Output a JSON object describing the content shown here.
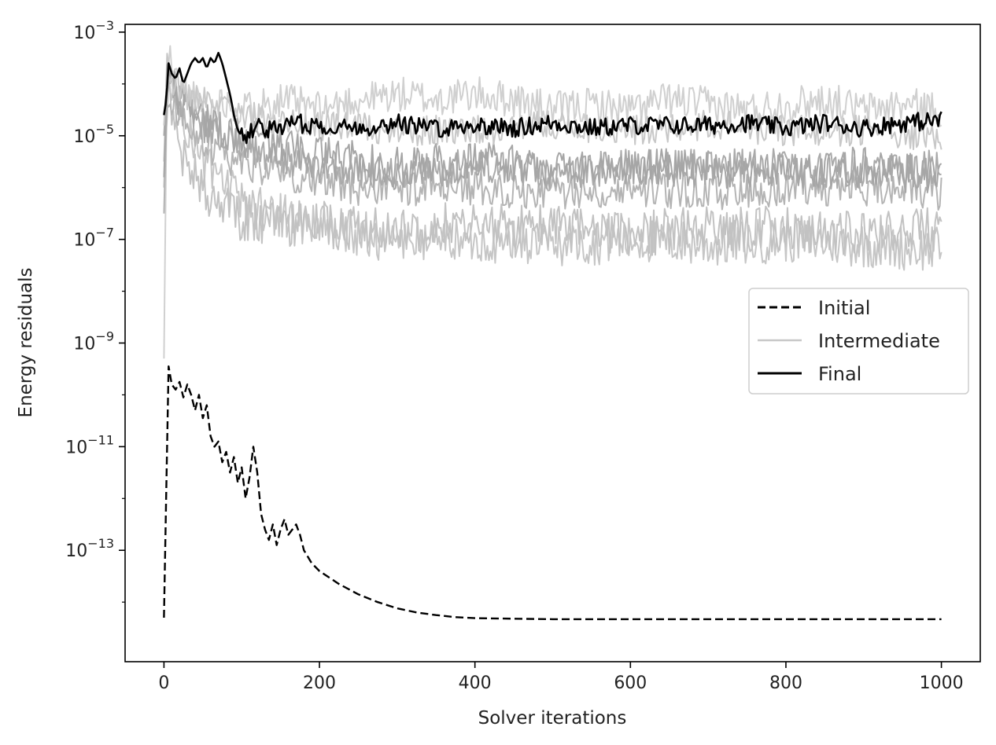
{
  "chart_data": {
    "type": "line",
    "title": "",
    "xlabel": "Solver iterations",
    "ylabel": "Energy residuals",
    "xlim": [
      -50,
      1050
    ],
    "ylim_log10": [
      -15.15,
      -2.85
    ],
    "y_scale": "log",
    "x_ticks": [
      0,
      200,
      400,
      600,
      800,
      1000
    ],
    "y_ticks": [
      {
        "exp": -3,
        "base": "10",
        "sup": "−3"
      },
      {
        "exp": -5,
        "base": "10",
        "sup": "−5"
      },
      {
        "exp": -7,
        "base": "10",
        "sup": "−7"
      },
      {
        "exp": -9,
        "base": "10",
        "sup": "−9"
      },
      {
        "exp": -11,
        "base": "10",
        "sup": "−11"
      },
      {
        "exp": -13,
        "base": "10",
        "sup": "−13"
      }
    ],
    "grid": false,
    "legend_position": "center-right",
    "legend": [
      {
        "label": "Initial",
        "style": "dashed",
        "color": "#000000"
      },
      {
        "label": "Intermediate",
        "style": "solid",
        "color": "#c8c8c8"
      },
      {
        "label": "Final",
        "style": "solid",
        "color": "#000000"
      }
    ],
    "series": [
      {
        "legend_ref": "Initial",
        "color": "#000000",
        "style": "dashed",
        "width": 2.4,
        "x": [
          0,
          3,
          6,
          10,
          15,
          20,
          25,
          30,
          35,
          40,
          45,
          50,
          55,
          60,
          65,
          70,
          75,
          80,
          85,
          90,
          95,
          100,
          105,
          110,
          115,
          120,
          125,
          130,
          135,
          140,
          145,
          150,
          155,
          160,
          165,
          170,
          175,
          180,
          190,
          200,
          225,
          250,
          275,
          300,
          325,
          350,
          375,
          400,
          450,
          500,
          600,
          700,
          800,
          900,
          1000
        ],
        "log10y": [
          -14.3,
          -11.8,
          -9.45,
          -9.8,
          -9.9,
          -9.75,
          -10.05,
          -9.8,
          -10.0,
          -10.3,
          -10.0,
          -10.45,
          -10.2,
          -10.8,
          -11.0,
          -10.9,
          -11.3,
          -11.1,
          -11.5,
          -11.2,
          -11.7,
          -11.4,
          -12.0,
          -11.6,
          -11.0,
          -11.5,
          -12.3,
          -12.6,
          -12.8,
          -12.5,
          -12.9,
          -12.6,
          -12.4,
          -12.7,
          -12.6,
          -12.5,
          -12.7,
          -13.0,
          -13.25,
          -13.4,
          -13.65,
          -13.85,
          -14.0,
          -14.12,
          -14.2,
          -14.25,
          -14.29,
          -14.31,
          -14.32,
          -14.33,
          -14.33,
          -14.33,
          -14.33,
          -14.33,
          -14.33
        ]
      },
      {
        "legend_ref": "Intermediate",
        "color": "#d0d0d0",
        "style": "solid",
        "width": 2,
        "opacity": 1,
        "x": [
          0,
          4,
          8,
          15,
          25,
          40,
          60,
          80,
          100,
          120,
          150,
          200,
          250,
          300,
          350,
          400,
          450,
          500,
          550,
          600,
          650,
          700,
          750,
          800,
          850,
          900,
          950,
          1000
        ],
        "log10y": [
          -9.3,
          -3.6,
          -3.5,
          -3.9,
          -4.1,
          -4.3,
          -4.5,
          -4.3,
          -4.5,
          -4.4,
          -4.3,
          -4.5,
          -4.3,
          -4.2,
          -4.3,
          -4.2,
          -4.3,
          -4.5,
          -4.4,
          -4.5,
          -4.3,
          -4.4,
          -4.5,
          -4.4,
          -4.3,
          -4.5,
          -4.4,
          -4.5
        ],
        "jitter": 0.35,
        "seed": 11
      },
      {
        "legend_ref": "Intermediate",
        "color": "#c6c6c6",
        "style": "solid",
        "width": 2,
        "opacity": 1,
        "x": [
          0,
          4,
          10,
          20,
          40,
          60,
          80,
          100,
          150,
          200,
          250,
          300,
          400,
          500,
          600,
          700,
          800,
          900,
          1000
        ],
        "log10y": [
          -5.5,
          -3.7,
          -3.9,
          -4.5,
          -5.2,
          -5.7,
          -6.0,
          -6.3,
          -6.5,
          -6.8,
          -6.9,
          -7.0,
          -7.0,
          -7.1,
          -7.0,
          -7.1,
          -7.0,
          -7.1,
          -7.2
        ],
        "jitter": 0.45,
        "seed": 23
      },
      {
        "legend_ref": "Intermediate",
        "color": "#c2c2c2",
        "style": "solid",
        "width": 2,
        "opacity": 1,
        "x": [
          0,
          4,
          10,
          20,
          40,
          60,
          80,
          100,
          150,
          200,
          250,
          300,
          400,
          500,
          600,
          700,
          800,
          900,
          1000
        ],
        "log10y": [
          -6.0,
          -4.2,
          -4.6,
          -5.2,
          -5.8,
          -6.2,
          -6.4,
          -6.6,
          -6.7,
          -6.7,
          -6.8,
          -6.8,
          -6.7,
          -6.8,
          -6.9,
          -6.8,
          -6.8,
          -6.9,
          -6.8
        ],
        "jitter": 0.45,
        "seed": 37
      },
      {
        "legend_ref": "Intermediate",
        "color": "#b4b4b4",
        "style": "solid",
        "width": 2,
        "opacity": 1,
        "x": [
          0,
          4,
          10,
          20,
          40,
          60,
          80,
          100,
          150,
          200,
          250,
          300,
          400,
          500,
          600,
          700,
          800,
          900,
          1000
        ],
        "log10y": [
          -6.5,
          -4.2,
          -4.3,
          -4.6,
          -4.9,
          -5.2,
          -5.4,
          -5.5,
          -5.7,
          -5.9,
          -6.0,
          -6.0,
          -6.0,
          -6.1,
          -6.0,
          -6.1,
          -6.0,
          -6.0,
          -6.1
        ],
        "jitter": 0.35,
        "seed": 51
      },
      {
        "legend_ref": "Intermediate",
        "color": "#aaaaaa",
        "style": "solid",
        "width": 2,
        "opacity": 1,
        "x": [
          0,
          4,
          10,
          20,
          40,
          60,
          80,
          100,
          150,
          200,
          250,
          300,
          400,
          500,
          600,
          700,
          800,
          900,
          1000
        ],
        "log10y": [
          -5.0,
          -3.9,
          -4.0,
          -4.3,
          -4.6,
          -4.9,
          -5.0,
          -5.2,
          -5.4,
          -5.6,
          -5.7,
          -5.7,
          -5.6,
          -5.7,
          -5.6,
          -5.6,
          -5.6,
          -5.7,
          -5.6
        ],
        "jitter": 0.35,
        "seed": 64
      },
      {
        "legend_ref": "Intermediate",
        "color": "#a6a6a6",
        "style": "solid",
        "width": 2,
        "opacity": 1,
        "x": [
          0,
          4,
          10,
          20,
          40,
          60,
          80,
          100,
          150,
          200,
          250,
          300,
          400,
          500,
          600,
          700,
          800,
          900,
          1000
        ],
        "log10y": [
          -5.8,
          -4.0,
          -4.1,
          -4.3,
          -4.5,
          -4.7,
          -4.9,
          -5.0,
          -5.2,
          -5.4,
          -5.5,
          -5.6,
          -5.5,
          -5.6,
          -5.6,
          -5.6,
          -5.7,
          -5.6,
          -5.8
        ],
        "jitter": 0.4,
        "seed": 77
      },
      {
        "legend_ref": "Intermediate",
        "color": "#c8c8c8",
        "style": "solid",
        "width": 2,
        "opacity": 1,
        "x": [
          0,
          4,
          10,
          20,
          40,
          60,
          80,
          100,
          150,
          200,
          250,
          300,
          400,
          500,
          600,
          700,
          800,
          900,
          1000
        ],
        "log10y": [
          -4.8,
          -3.8,
          -3.9,
          -4.1,
          -4.3,
          -4.4,
          -4.5,
          -4.6,
          -4.7,
          -4.8,
          -4.8,
          -4.9,
          -4.9,
          -4.8,
          -4.9,
          -4.8,
          -4.9,
          -4.9,
          -5.0
        ],
        "jitter": 0.3,
        "seed": 88
      },
      {
        "legend_ref": "Final",
        "color": "#000000",
        "style": "solid",
        "width": 2.6,
        "x": [
          0,
          3,
          6,
          10,
          15,
          20,
          25,
          30,
          35,
          40,
          45,
          50,
          55,
          60,
          65,
          70,
          75,
          80,
          85,
          90,
          95,
          100,
          110,
          120,
          140,
          160,
          200,
          250,
          300,
          350,
          400,
          450,
          500,
          550,
          600,
          650,
          700,
          750,
          800,
          850,
          900,
          950,
          1000
        ],
        "log10y": [
          -4.6,
          -4.3,
          -3.6,
          -3.8,
          -3.9,
          -3.7,
          -4.0,
          -3.8,
          -3.6,
          -3.5,
          -3.6,
          -3.5,
          -3.7,
          -3.5,
          -3.6,
          -3.4,
          -3.6,
          -3.9,
          -4.2,
          -4.6,
          -4.9,
          -5.0,
          -4.95,
          -4.8,
          -4.9,
          -4.75,
          -4.8,
          -4.85,
          -4.75,
          -4.85,
          -4.8,
          -4.85,
          -4.75,
          -4.85,
          -4.8,
          -4.8,
          -4.8,
          -4.75,
          -4.85,
          -4.75,
          -4.85,
          -4.75,
          -4.7
        ],
        "jitter": 0.18,
        "jitter_from": 100,
        "seed": 101
      }
    ]
  }
}
